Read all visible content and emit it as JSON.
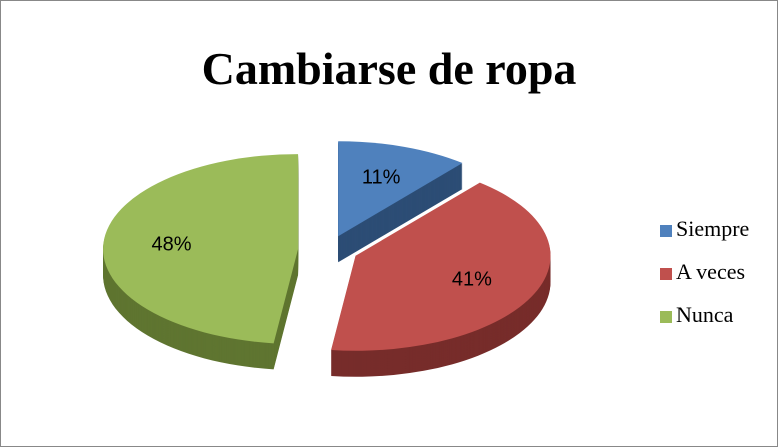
{
  "chart_data": {
    "type": "pie",
    "title": "Cambiarse de ropa",
    "categories": [
      "Siempre",
      "A veces",
      "Nunca"
    ],
    "values": [
      11,
      41,
      48
    ],
    "value_labels": [
      "11%",
      "41%",
      "48%"
    ],
    "colors": [
      "#4f81bd",
      "#c0504d",
      "#9bbb59"
    ],
    "side_colors": [
      "#2c4d75",
      "#772c2a",
      "#5f7530"
    ],
    "legend": "right",
    "exploded": true,
    "three_d": true
  }
}
